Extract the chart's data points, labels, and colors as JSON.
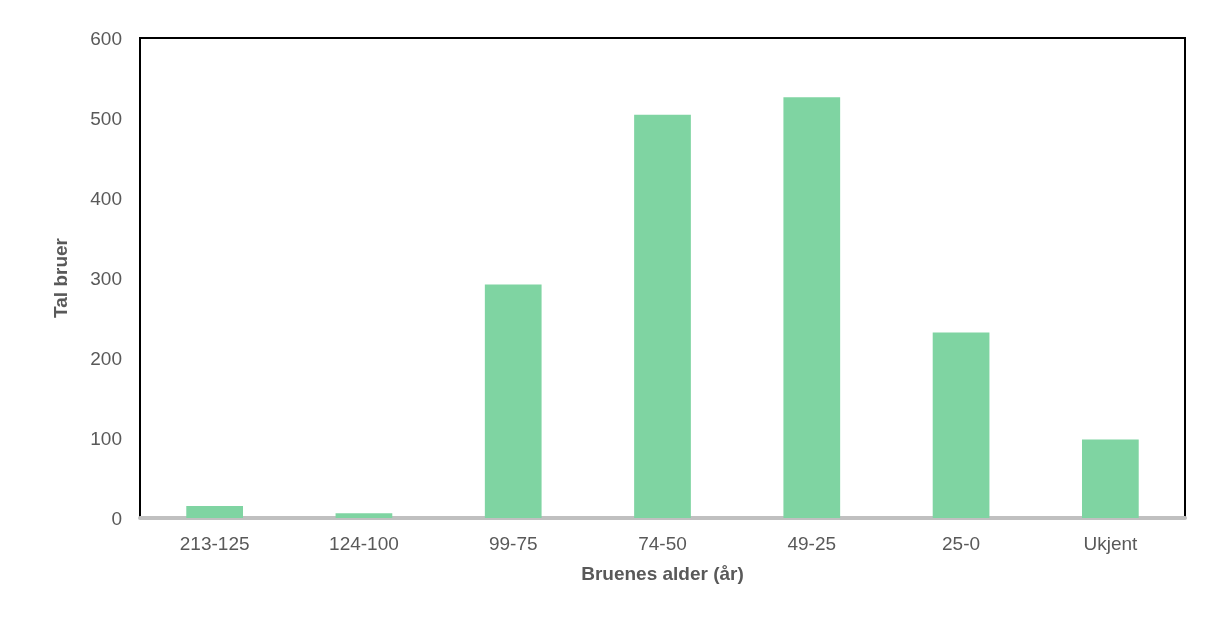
{
  "chart_data": {
    "type": "bar",
    "xlabel": "Bruenes alder (år)",
    "ylabel": "Tal bruer",
    "categories": [
      "213-125",
      "124-100",
      "99-75",
      "74-50",
      "49-25",
      "25-0",
      "Ukjent"
    ],
    "values": [
      15,
      6,
      292,
      504,
      526,
      232,
      98
    ],
    "color": "#7fd4a2",
    "ylim": [
      0,
      600
    ],
    "yticks": [
      0,
      100,
      200,
      300,
      400,
      500,
      600
    ],
    "grid": false
  }
}
